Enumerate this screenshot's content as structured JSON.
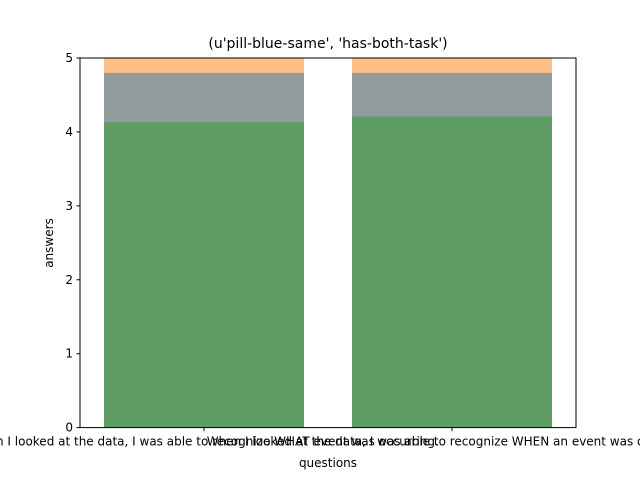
{
  "chart_data": {
    "type": "bar",
    "title": "(u'pill-blue-same', 'has-both-task')",
    "xlabel": "questions",
    "ylabel": "answers",
    "ylim": [
      0,
      5
    ],
    "yticks": [
      "0",
      "1",
      "2",
      "3",
      "4",
      "5"
    ],
    "categories": [
      "When I looked at the data, I was able to recognize WHAT event was occurring.",
      "When I looked at the data, I was able to recognize WHEN an event was occurring."
    ],
    "series": [
      {
        "color": "#ff7f0e",
        "opacity": 0.5,
        "values": [
          5.0,
          5.0
        ]
      },
      {
        "color": "#1f77b4",
        "opacity": 0.5,
        "values": [
          4.8,
          4.8
        ]
      },
      {
        "color": "#2ca02c",
        "opacity": 0.5,
        "values": [
          4.13,
          4.21
        ]
      }
    ],
    "grid": false,
    "legend": "none"
  }
}
